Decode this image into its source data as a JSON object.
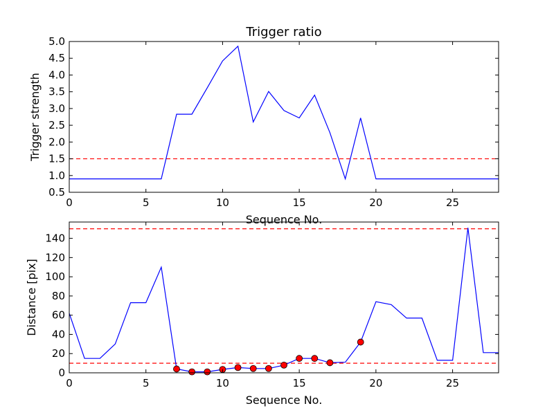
{
  "chart_data": [
    {
      "type": "line",
      "title": "Trigger ratio",
      "xlabel": "Sequence No.",
      "ylabel": "Trigger strength",
      "xlim": [
        0,
        28
      ],
      "ylim": [
        0.5,
        5.0
      ],
      "x_ticks": [
        "0",
        "5",
        "10",
        "15",
        "20",
        "25"
      ],
      "y_ticks": [
        "0.5",
        "1.0",
        "1.5",
        "2.0",
        "2.5",
        "3.0",
        "3.5",
        "4.0",
        "4.5",
        "5.0"
      ],
      "grid": false,
      "series": [
        {
          "color": "#0000ff",
          "style": "solid",
          "x": [
            0,
            1,
            2,
            3,
            4,
            5,
            6,
            7,
            8,
            9,
            10,
            11,
            12,
            13,
            14,
            15,
            16,
            17,
            18,
            19,
            20,
            21,
            22,
            23,
            24,
            25,
            26,
            27,
            28
          ],
          "y": [
            0.9,
            0.9,
            0.9,
            0.9,
            0.9,
            0.9,
            0.9,
            2.83,
            2.83,
            3.62,
            4.42,
            4.86,
            2.6,
            3.51,
            2.94,
            2.72,
            3.4,
            2.28,
            0.9,
            2.72,
            0.9,
            0.9,
            0.9,
            0.9,
            0.9,
            0.9,
            0.9,
            0.9,
            0.9
          ]
        }
      ],
      "reference_lines": [
        {
          "y": 1.5,
          "color": "#ff0000",
          "style": "dashed"
        }
      ]
    },
    {
      "type": "line",
      "title": "",
      "xlabel": "Sequence No.",
      "ylabel": "Distance [pix]",
      "xlim": [
        0,
        28
      ],
      "ylim": [
        0,
        157
      ],
      "x_ticks": [
        "0",
        "5",
        "10",
        "15",
        "20",
        "25"
      ],
      "y_ticks": [
        "0",
        "20",
        "40",
        "60",
        "80",
        "100",
        "120",
        "140"
      ],
      "grid": false,
      "series": [
        {
          "color": "#0000ff",
          "style": "solid",
          "x": [
            0,
            1,
            2,
            3,
            4,
            5,
            6,
            7,
            8,
            9,
            10,
            11,
            12,
            13,
            14,
            15,
            16,
            17,
            18,
            19,
            20,
            21,
            22,
            23,
            24,
            25,
            26,
            27,
            28
          ],
          "y": [
            62,
            15,
            15,
            30,
            73,
            73,
            110,
            4,
            1,
            1,
            3.5,
            5.5,
            4.5,
            4.5,
            8,
            15,
            15,
            10.5,
            11,
            32,
            74,
            71,
            57,
            57,
            13,
            13,
            151,
            21,
            21
          ]
        }
      ],
      "markers": {
        "color": "#ff0000",
        "x": [
          7,
          8,
          9,
          10,
          11,
          12,
          13,
          14,
          15,
          16,
          17,
          19
        ],
        "y": [
          4,
          1,
          1,
          3.5,
          5.5,
          4.5,
          4.5,
          8,
          15,
          15,
          10.5,
          32
        ]
      },
      "reference_lines": [
        {
          "y": 150,
          "color": "#ff0000",
          "style": "dashed"
        },
        {
          "y": 10,
          "color": "#ff0000",
          "style": "dashed"
        }
      ]
    }
  ]
}
